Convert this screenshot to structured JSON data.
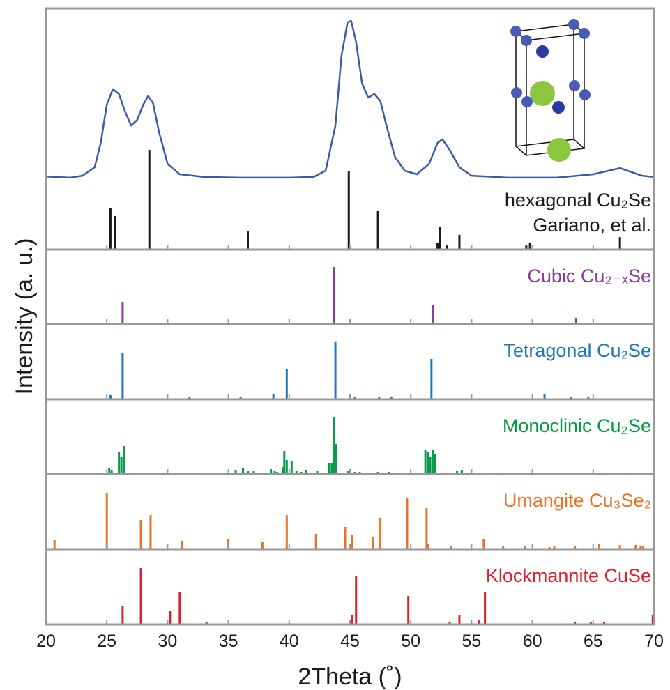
{
  "chart_data": [
    {
      "type": "line",
      "ylabel": "Intensity (a. u.)",
      "label": [
        "hexagonal Cu₂Se",
        "Gariano, et al."
      ],
      "color": "#3a5ba8",
      "x": [
        20,
        22,
        23,
        24,
        24.5,
        25,
        25.5,
        26,
        26.5,
        27,
        27.5,
        28,
        28.4,
        28.8,
        29.3,
        30,
        31,
        33,
        36,
        40,
        42,
        43,
        43.8,
        44.3,
        44.8,
        45.1,
        45.5,
        46,
        46.5,
        47,
        47.5,
        48,
        48.7,
        49.5,
        50.5,
        51.5,
        52.2,
        52.6,
        53.2,
        54,
        55,
        58,
        62,
        65,
        67.2,
        69,
        70
      ],
      "values": [
        30.3,
        29.8,
        30.6,
        34.1,
        44.2,
        60.1,
        66.5,
        64.5,
        57.2,
        51.4,
        53.8,
        60.1,
        63.6,
        60.7,
        48.6,
        35.5,
        31.2,
        30.1,
        29.8,
        29.8,
        30.1,
        32.7,
        51.4,
        80.3,
        94.2,
        94.8,
        86.1,
        68.8,
        63.0,
        64.5,
        61.6,
        51.4,
        38.4,
        32.7,
        31.2,
        35.5,
        44.2,
        45.7,
        41.3,
        34.1,
        30.6,
        29.8,
        29.8,
        31.2,
        33.8,
        30.6,
        30.1
      ],
      "stick_color": "#1a1a1a",
      "stick_x": [
        25.3,
        25.7,
        28.5,
        36.6,
        44.9,
        47.3,
        52.2,
        52.4,
        53.0,
        54.0,
        59.5,
        59.8,
        67.2
      ],
      "stick_values": [
        17.3,
        13.9,
        41.3,
        7.5,
        32.4,
        15.9,
        2.9,
        9.5,
        1.7,
        6.1,
        1.7,
        2.9,
        5.2
      ],
      "xlim": [
        20,
        70
      ],
      "ylim": [
        0,
        100
      ]
    },
    {
      "type": "stem",
      "label": [
        "Cubic Cu₂₋ₓSe"
      ],
      "color": "#8b3c9e",
      "x": [
        26.3,
        43.7,
        51.8,
        63.6
      ],
      "values": [
        29,
        76.6,
        25.2,
        8.4
      ],
      "xlim": [
        20,
        70
      ],
      "ylim": [
        0,
        100
      ]
    },
    {
      "type": "stem",
      "label": [
        "Tetragonal Cu₂Se"
      ],
      "color": "#2277bb",
      "x": [
        25.3,
        26.3,
        31.8,
        36.0,
        38.7,
        39.8,
        43.8,
        45.4,
        47.4,
        48.4,
        51.7,
        61.0,
        63.2,
        64.6
      ],
      "values": [
        5.6,
        62,
        3.7,
        3.7,
        7.5,
        40,
        77,
        3.7,
        3.7,
        3.7,
        53.7,
        7.5,
        3.7,
        3.7
      ],
      "xlim": [
        20,
        70
      ],
      "ylim": [
        0,
        100
      ]
    },
    {
      "type": "stem",
      "label": [
        "Monoclinic Cu₂Se"
      ],
      "color": "#0a9a4a",
      "x": [
        25.2,
        25.4,
        26.0,
        26.2,
        26.4,
        33.0,
        33.5,
        34.0,
        35.6,
        36.2,
        36.6,
        37.1,
        38.5,
        38.8,
        39.0,
        39.5,
        39.6,
        39.8,
        40.2,
        40.6,
        41.0,
        41.4,
        42.3,
        43.3,
        43.5,
        43.7,
        43.85,
        44.8,
        45.4,
        45.8,
        47.3,
        48.2,
        49.5,
        50.6,
        51.2,
        51.4,
        51.6,
        51.8,
        52.0,
        53.8,
        54.2,
        54.5,
        55.9
      ],
      "values": [
        8.4,
        4.7,
        29.9,
        23.4,
        37.4,
        1.9,
        1.9,
        1.9,
        4.7,
        7.5,
        3.7,
        3.7,
        6.5,
        3.7,
        2.8,
        9.3,
        30.8,
        18.7,
        16.8,
        3.7,
        2.8,
        4.7,
        3.7,
        14,
        15,
        75.7,
        40.2,
        3.7,
        2.8,
        2.8,
        2.8,
        2.8,
        1.9,
        1.9,
        31.8,
        29,
        23.4,
        31.8,
        26.2,
        3.7,
        4.7,
        1.9,
        1.9
      ],
      "xlim": [
        20,
        70
      ],
      "ylim": [
        0,
        100
      ]
    },
    {
      "type": "stem",
      "label": [
        "Umangite Cu₃Se₂"
      ],
      "color": "#e8742a",
      "x": [
        20.7,
        25.0,
        27.8,
        28.6,
        31.2,
        35.0,
        37.8,
        39.8,
        42.2,
        44.6,
        45.2,
        46.9,
        47.5,
        49.7,
        51.3,
        51.4,
        53.3,
        56.0,
        57.6,
        59.4,
        61.4,
        61.8,
        63.5,
        65.5,
        67.2,
        68.5,
        68.9,
        69.1
      ],
      "values": [
        12,
        75,
        38.9,
        45.4,
        11.1,
        13,
        10.2,
        45.4,
        20.4,
        29.6,
        19.4,
        15.7,
        41.7,
        67.6,
        54.6,
        7.4,
        4.6,
        13.9,
        3.7,
        4.6,
        2.8,
        3.7,
        3.7,
        6.5,
        5.6,
        5.6,
        3.7,
        3.7
      ],
      "xlim": [
        20,
        70
      ],
      "ylim": [
        0,
        100
      ]
    },
    {
      "type": "stem",
      "label": [
        "Klockmannite CuSe"
      ],
      "color": "#e01f2a",
      "x": [
        26.3,
        27.8,
        30.2,
        31.0,
        33.2,
        45.2,
        45.5,
        49.8,
        53.2,
        54.0,
        55.6,
        56.1,
        63.5,
        64.8,
        65.9,
        69.9
      ],
      "values": [
        24.1,
        75,
        18.5,
        43.5,
        2.8,
        12,
        63.9,
        38,
        2.8,
        12,
        5.6,
        42.6,
        2.8,
        2.8,
        3.7,
        13
      ],
      "xlim": [
        20,
        70
      ],
      "ylim": [
        0,
        100
      ],
      "xticks": [
        20,
        25,
        30,
        35,
        40,
        45,
        50,
        55,
        60,
        65,
        70
      ],
      "xlabel": "2Theta (˚)"
    }
  ]
}
